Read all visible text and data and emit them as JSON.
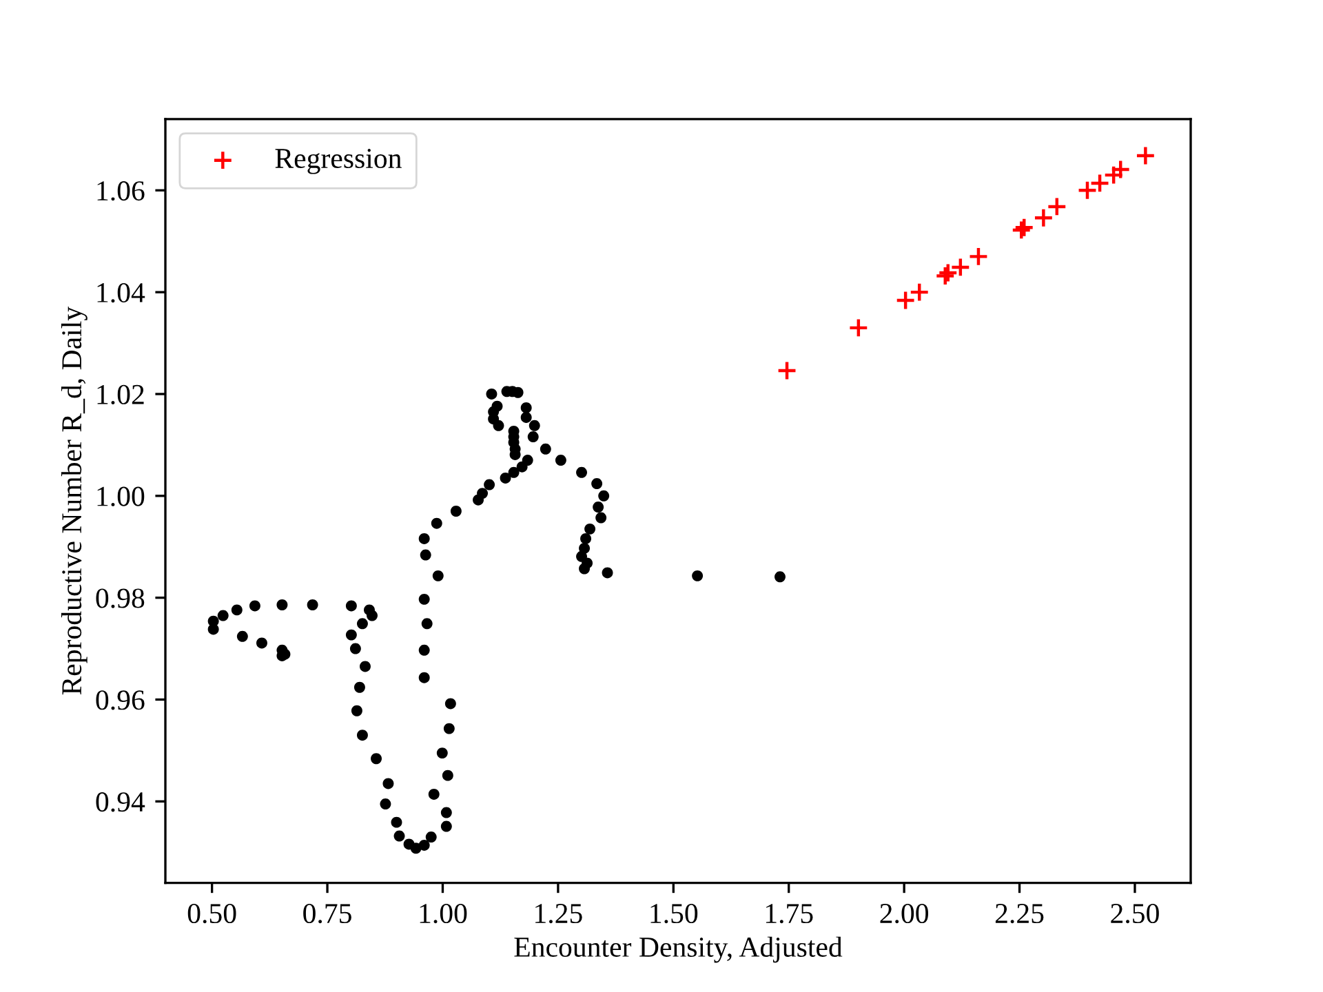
{
  "chart_data": {
    "type": "scatter",
    "xlabel": "Encounter Density, Adjusted",
    "ylabel": "Reproductive Number R_d, Daily",
    "xlim": [
      0.399,
      2.621
    ],
    "ylim": [
      0.924,
      1.074
    ],
    "xticks": [
      {
        "value": 0.5,
        "label": "0.50"
      },
      0.75,
      {
        "value": 1.0,
        "label": "1.00"
      },
      1.25,
      {
        "value": 1.5,
        "label": "1.50"
      },
      1.75,
      {
        "value": 2.0,
        "label": "2.00"
      },
      2.25,
      {
        "value": 2.5,
        "label": "2.50"
      }
    ],
    "yticks": [
      0.94,
      0.96,
      0.98,
      {
        "value": 1.0,
        "label": "1.00"
      },
      1.02,
      1.04,
      1.06
    ],
    "grid": false,
    "legend": "top left",
    "series": [
      {
        "color": "#000000",
        "marker": "circle",
        "x": [
          1.731,
          1.552,
          1.357,
          1.307,
          1.313,
          1.301,
          1.307,
          1.31,
          1.319,
          1.343,
          1.337,
          1.349,
          1.334,
          1.301,
          1.256,
          1.223,
          1.196,
          1.199,
          1.181,
          1.181,
          1.163,
          1.151,
          1.139,
          1.106,
          1.118,
          1.11,
          1.11,
          1.121,
          1.154,
          1.154,
          1.154,
          1.157,
          1.157,
          1.184,
          1.172,
          1.154,
          1.136,
          1.101,
          1.086,
          1.077,
          1.029,
          0.987,
          0.96,
          0.963,
          0.99,
          0.96,
          0.966,
          0.96,
          0.96,
          1.017,
          1.014,
          0.999,
          1.011,
          0.981,
          1.008,
          1.008,
          0.975,
          0.96,
          0.942,
          0.927,
          0.906,
          0.9,
          0.876,
          0.882,
          0.856,
          0.826,
          0.814,
          0.82,
          0.832,
          0.811,
          0.802,
          0.826,
          0.847,
          0.841,
          0.802,
          0.718,
          0.652,
          0.593,
          0.554,
          0.524,
          0.503,
          0.503,
          0.566,
          0.608,
          0.652,
          0.658,
          0.652
        ],
        "values": [
          0.9841,
          0.9843,
          0.9849,
          0.9857,
          0.9868,
          0.9881,
          0.9897,
          0.9916,
          0.9935,
          0.9957,
          0.9978,
          1.0,
          1.0024,
          1.0046,
          1.007,
          1.0092,
          1.0116,
          1.0138,
          1.0154,
          1.0173,
          1.0203,
          1.0205,
          1.0205,
          1.02,
          1.0176,
          1.0165,
          1.0151,
          1.0138,
          1.0127,
          1.0116,
          1.0105,
          1.0092,
          1.0081,
          1.007,
          1.0057,
          1.0046,
          1.0035,
          1.0022,
          1.0005,
          0.9992,
          0.997,
          0.9946,
          0.9916,
          0.9884,
          0.9843,
          0.9797,
          0.9749,
          0.9697,
          0.9643,
          0.9592,
          0.9543,
          0.9495,
          0.9451,
          0.9414,
          0.9378,
          0.9351,
          0.933,
          0.9314,
          0.9308,
          0.9316,
          0.9332,
          0.9359,
          0.9395,
          0.9435,
          0.9484,
          0.953,
          0.9578,
          0.9624,
          0.9665,
          0.97,
          0.9727,
          0.9749,
          0.9765,
          0.9776,
          0.9784,
          0.9786,
          0.9786,
          0.9784,
          0.9776,
          0.9765,
          0.9754,
          0.9738,
          0.9724,
          0.9711,
          0.9697,
          0.9689,
          0.9686
        ]
      },
      {
        "name": "Regression",
        "color": "#ff0000",
        "marker": "cross",
        "x": [
          1.746,
          1.901,
          2.003,
          2.033,
          2.089,
          2.095,
          2.122,
          2.161,
          2.254,
          2.26,
          2.302,
          2.331,
          2.397,
          2.424,
          2.454,
          2.469,
          2.523
        ],
        "values": [
          1.0246,
          1.033,
          1.0384,
          1.04,
          1.0432,
          1.0438,
          1.0449,
          1.047,
          1.0522,
          1.0527,
          1.0546,
          1.0568,
          1.06,
          1.0614,
          1.063,
          1.0641,
          1.0668
        ]
      }
    ]
  }
}
